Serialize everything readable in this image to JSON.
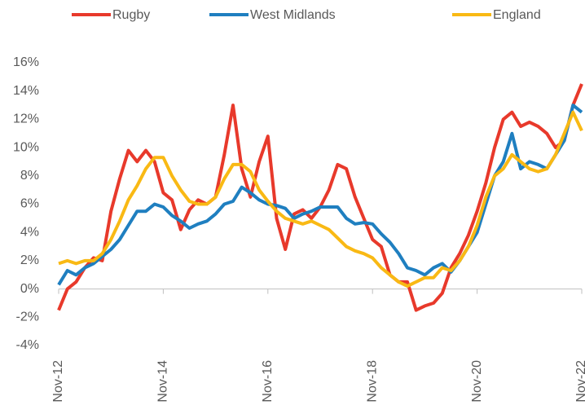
{
  "chart_data": {
    "type": "line",
    "categories": [
      "Nov-12",
      null,
      null,
      null,
      null,
      null,
      null,
      null,
      null,
      null,
      null,
      null,
      "Nov-14",
      null,
      null,
      null,
      null,
      null,
      null,
      null,
      null,
      null,
      null,
      null,
      "Nov-16",
      null,
      null,
      null,
      null,
      null,
      null,
      null,
      null,
      null,
      null,
      null,
      "Nov-18",
      null,
      null,
      null,
      null,
      null,
      null,
      null,
      null,
      null,
      null,
      null,
      "Nov-20",
      null,
      null,
      null,
      null,
      null,
      null,
      null,
      null,
      null,
      null,
      null,
      "Nov-22"
    ],
    "series": [
      {
        "name": "Rugby",
        "color": "#e8392b",
        "values": [
          -1.5,
          0.0,
          0.5,
          1.5,
          2.2,
          2.0,
          5.5,
          7.8,
          9.8,
          9.0,
          9.8,
          9.0,
          6.8,
          6.3,
          4.2,
          5.6,
          6.3,
          6.0,
          6.5,
          9.5,
          13.0,
          8.5,
          6.5,
          9.0,
          10.8,
          5.0,
          2.8,
          5.3,
          5.6,
          5.0,
          5.8,
          7.0,
          8.8,
          8.5,
          6.5,
          5.0,
          3.5,
          3.0,
          1.0,
          0.5,
          0.5,
          -1.5,
          -1.2,
          -1.0,
          -0.3,
          1.5,
          2.5,
          3.8,
          5.5,
          7.5,
          10.0,
          12.0,
          12.5,
          11.5,
          11.8,
          11.5,
          11.0,
          10.0,
          10.5,
          13.0,
          14.5
        ]
      },
      {
        "name": "West Midlands",
        "color": "#1f7fc0",
        "values": [
          0.3,
          1.3,
          1.0,
          1.5,
          1.8,
          2.3,
          2.8,
          3.5,
          4.5,
          5.5,
          5.5,
          6.0,
          5.8,
          5.2,
          4.8,
          4.3,
          4.6,
          4.8,
          5.3,
          6.0,
          6.2,
          7.2,
          6.8,
          6.3,
          6.0,
          5.9,
          5.7,
          5.0,
          5.3,
          5.5,
          5.8,
          5.8,
          5.8,
          5.0,
          4.6,
          4.7,
          4.6,
          3.9,
          3.3,
          2.5,
          1.5,
          1.3,
          1.0,
          1.5,
          1.8,
          1.2,
          2.0,
          3.0,
          4.0,
          6.0,
          8.0,
          9.0,
          11.0,
          8.5,
          9.0,
          8.8,
          8.5,
          9.5,
          10.5,
          13.0,
          12.5
        ]
      },
      {
        "name": "England",
        "color": "#f9b914",
        "values": [
          1.8,
          2.0,
          1.8,
          2.0,
          2.0,
          2.5,
          3.5,
          4.8,
          6.3,
          7.3,
          8.5,
          9.3,
          9.3,
          8.0,
          7.0,
          6.2,
          6.0,
          6.0,
          6.5,
          7.8,
          8.8,
          8.8,
          8.3,
          7.0,
          6.2,
          5.5,
          5.0,
          4.8,
          4.6,
          4.8,
          4.5,
          4.2,
          3.6,
          3.0,
          2.7,
          2.5,
          2.2,
          1.5,
          1.0,
          0.5,
          0.2,
          0.5,
          0.8,
          0.8,
          1.5,
          1.3,
          2.0,
          3.0,
          4.5,
          6.5,
          8.0,
          8.5,
          9.5,
          9.0,
          8.5,
          8.3,
          8.5,
          9.5,
          11.0,
          12.5,
          11.2
        ]
      }
    ],
    "ylim": [
      -4,
      16
    ],
    "yticks": [
      {
        "value": -4,
        "label": "-4%"
      },
      {
        "value": -2,
        "label": "-2%"
      },
      {
        "value": 0,
        "label": "0%"
      },
      {
        "value": 2,
        "label": "2%"
      },
      {
        "value": 4,
        "label": "4%"
      },
      {
        "value": 6,
        "label": "6%"
      },
      {
        "value": 8,
        "label": "8%"
      },
      {
        "value": 10,
        "label": "10%"
      },
      {
        "value": 12,
        "label": "12%"
      },
      {
        "value": 14,
        "label": "14%"
      },
      {
        "value": 16,
        "label": "16%"
      }
    ],
    "grid": false,
    "legend": "top"
  }
}
